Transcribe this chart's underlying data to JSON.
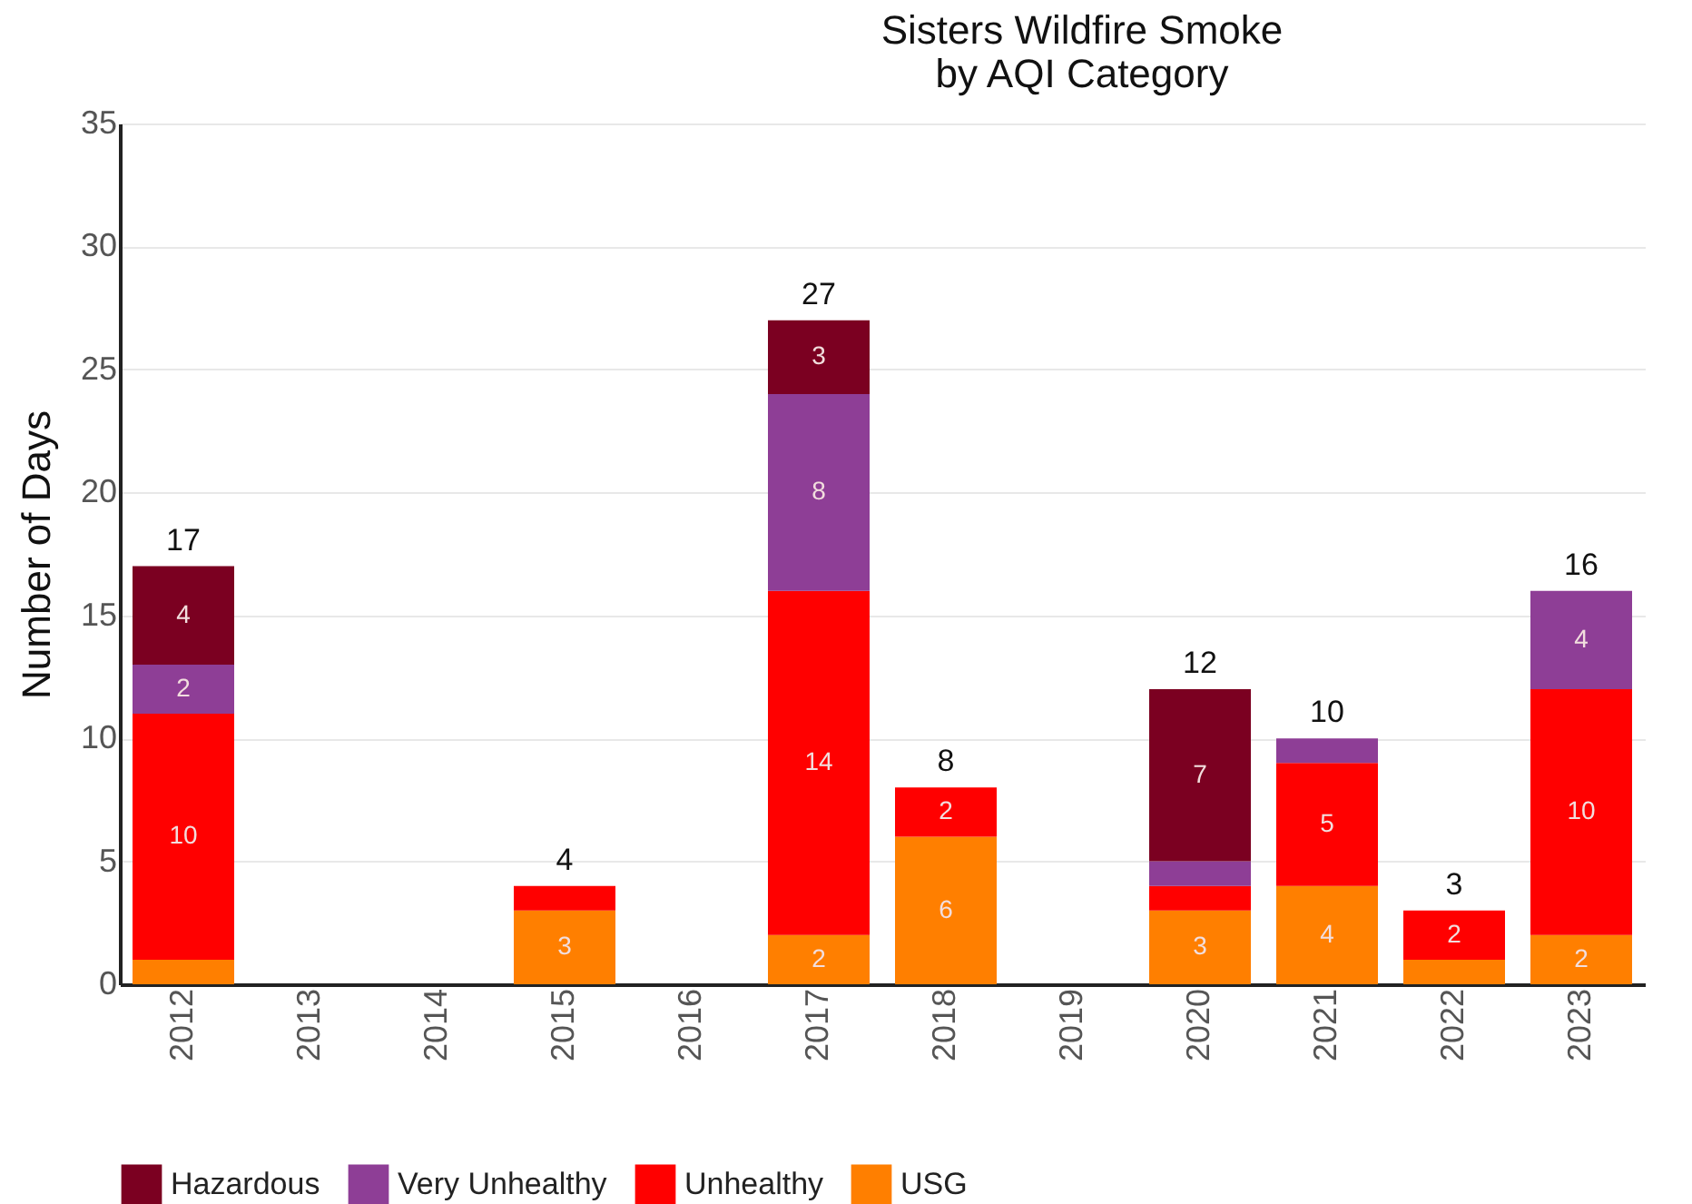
{
  "chart_data": {
    "type": "bar",
    "title": [
      "Sisters Wildfire Smoke",
      " by AQI Category"
    ],
    "ylabel": "Number of Days",
    "stacked": true,
    "categories": [
      "2012",
      "2013",
      "2014",
      "2015",
      "2016",
      "2017",
      "2018",
      "2019",
      "2020",
      "2021",
      "2022",
      "2023"
    ],
    "series": [
      {
        "name": "USG",
        "color": "#ff7f00",
        "values": [
          1,
          0,
          0,
          3,
          0,
          2,
          6,
          0,
          3,
          4,
          1,
          2
        ],
        "value_labels": [
          null,
          null,
          null,
          "3",
          null,
          "2",
          "6",
          null,
          "3",
          "4",
          null,
          "2"
        ]
      },
      {
        "name": "Unhealthy",
        "color": "#ff0000",
        "values": [
          10,
          0,
          0,
          1,
          0,
          14,
          2,
          0,
          1,
          5,
          2,
          10
        ],
        "value_labels": [
          "10",
          null,
          null,
          null,
          null,
          "14",
          "2",
          null,
          null,
          "5",
          "2",
          "10"
        ]
      },
      {
        "name": "Very Unhealthy",
        "color": "#8e3e96",
        "values": [
          2,
          0,
          0,
          0,
          0,
          8,
          0,
          0,
          1,
          1,
          0,
          4
        ],
        "value_labels": [
          "2",
          null,
          null,
          null,
          null,
          "8",
          null,
          null,
          null,
          null,
          null,
          "4"
        ]
      },
      {
        "name": "Hazardous",
        "color": "#7b0021",
        "values": [
          4,
          0,
          0,
          0,
          0,
          3,
          0,
          0,
          7,
          0,
          0,
          0
        ],
        "value_labels": [
          "4",
          null,
          null,
          null,
          null,
          "3",
          null,
          null,
          "7",
          null,
          null,
          null
        ]
      }
    ],
    "totals": [
      "17",
      null,
      null,
      "4",
      null,
      "27",
      "8",
      null,
      "12",
      "10",
      "3",
      "16"
    ],
    "ylim": [
      0,
      35
    ],
    "yticks": [
      0,
      5,
      10,
      15,
      20,
      25,
      30,
      35
    ],
    "grid": "y",
    "legend": "bottom"
  }
}
